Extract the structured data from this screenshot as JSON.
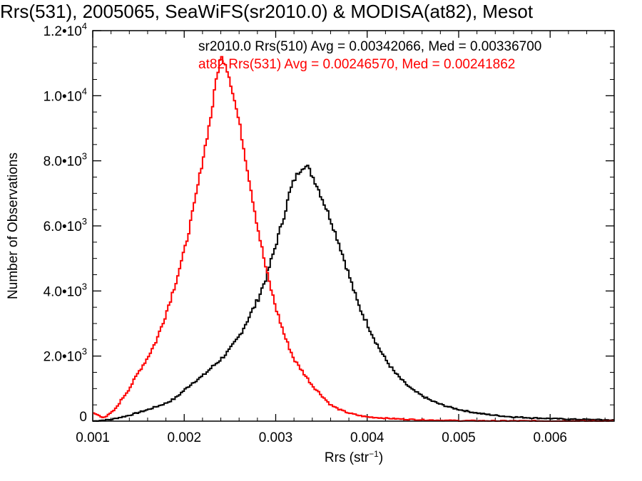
{
  "chart_data": {
    "type": "histogram-step",
    "title": "Rrs(531), 2005065, SeaWiFS(sr2010.0) & MODISA(at82), Mesot",
    "xlabel": "Rrs (str",
    "xlabel_sup": "−1",
    "xlabel_close": ")",
    "ylabel": "Number of Observations",
    "xlim": [
      0.001,
      0.0067
    ],
    "ylim": [
      0,
      12000
    ],
    "x_ticks": [
      {
        "value": 0.001,
        "label": "0.001"
      },
      {
        "value": 0.002,
        "label": "0.002"
      },
      {
        "value": 0.003,
        "label": "0.003"
      },
      {
        "value": 0.004,
        "label": "0.004"
      },
      {
        "value": 0.005,
        "label": "0.005"
      },
      {
        "value": 0.006,
        "label": "0.006"
      }
    ],
    "y_ticks": [
      {
        "value": 0,
        "mant": "0",
        "exp": ""
      },
      {
        "value": 2000,
        "mant": "2.0•10",
        "exp": "3"
      },
      {
        "value": 4000,
        "mant": "4.0•10",
        "exp": "3"
      },
      {
        "value": 6000,
        "mant": "6.0•10",
        "exp": "3"
      },
      {
        "value": 8000,
        "mant": "8.0•10",
        "exp": "3"
      },
      {
        "value": 10000,
        "mant": "1.0•10",
        "exp": "4"
      },
      {
        "value": 12000,
        "mant": "1.2•10",
        "exp": "4"
      }
    ],
    "legend": [
      {
        "text": "sr2010.0 Rrs(510) Avg = 0.00342066, Med = 0.00336700",
        "color": "#000000"
      },
      {
        "text": "at82 Rrs(531) Avg = 0.00246570, Med = 0.00241862",
        "color": "#ff0000"
      }
    ],
    "series": [
      {
        "color": "#000000",
        "points": [
          [
            0.001,
            0
          ],
          [
            0.0012,
            50
          ],
          [
            0.0014,
            180
          ],
          [
            0.0016,
            350
          ],
          [
            0.0018,
            550
          ],
          [
            0.0019,
            700
          ],
          [
            0.002,
            950
          ],
          [
            0.0021,
            1200
          ],
          [
            0.0022,
            1380
          ],
          [
            0.0023,
            1650
          ],
          [
            0.0024,
            1900
          ],
          [
            0.0025,
            2200
          ],
          [
            0.0026,
            2600
          ],
          [
            0.0027,
            3150
          ],
          [
            0.0028,
            3700
          ],
          [
            0.0029,
            4450
          ],
          [
            0.003,
            5400
          ],
          [
            0.0031,
            6400
          ],
          [
            0.00315,
            7000
          ],
          [
            0.0032,
            7400
          ],
          [
            0.00325,
            7650
          ],
          [
            0.0033,
            7850
          ],
          [
            0.00335,
            7800
          ],
          [
            0.0034,
            7550
          ],
          [
            0.00345,
            7250
          ],
          [
            0.0035,
            6900
          ],
          [
            0.0036,
            6200
          ],
          [
            0.0037,
            5400
          ],
          [
            0.0038,
            4500
          ],
          [
            0.0039,
            3600
          ],
          [
            0.004,
            3000
          ],
          [
            0.0041,
            2400
          ],
          [
            0.0042,
            1900
          ],
          [
            0.0043,
            1500
          ],
          [
            0.0044,
            1200
          ],
          [
            0.0045,
            950
          ],
          [
            0.0046,
            780
          ],
          [
            0.0047,
            630
          ],
          [
            0.0048,
            520
          ],
          [
            0.0049,
            430
          ],
          [
            0.005,
            360
          ],
          [
            0.0051,
            300
          ],
          [
            0.0052,
            250
          ],
          [
            0.0053,
            210
          ],
          [
            0.0054,
            180
          ],
          [
            0.0055,
            150
          ],
          [
            0.0056,
            130
          ],
          [
            0.0058,
            100
          ],
          [
            0.006,
            80
          ],
          [
            0.0062,
            60
          ],
          [
            0.0064,
            50
          ],
          [
            0.0066,
            40
          ],
          [
            0.0067,
            30
          ]
        ]
      },
      {
        "color": "#ff0000",
        "points": [
          [
            0.001,
            250
          ],
          [
            0.00105,
            200
          ],
          [
            0.0011,
            120
          ],
          [
            0.00115,
            150
          ],
          [
            0.0012,
            250
          ],
          [
            0.00125,
            380
          ],
          [
            0.0013,
            600
          ],
          [
            0.0014,
            1000
          ],
          [
            0.0015,
            1500
          ],
          [
            0.0016,
            1950
          ],
          [
            0.0017,
            2500
          ],
          [
            0.0018,
            3300
          ],
          [
            0.0019,
            4200
          ],
          [
            0.002,
            5200
          ],
          [
            0.0021,
            6500
          ],
          [
            0.0022,
            8000
          ],
          [
            0.0023,
            9500
          ],
          [
            0.00235,
            10500
          ],
          [
            0.0024,
            11200
          ],
          [
            0.00245,
            11000
          ],
          [
            0.0025,
            10500
          ],
          [
            0.0026,
            9200
          ],
          [
            0.0027,
            7600
          ],
          [
            0.0028,
            6000
          ],
          [
            0.0029,
            4600
          ],
          [
            0.003,
            3500
          ],
          [
            0.0031,
            2600
          ],
          [
            0.0032,
            1900
          ],
          [
            0.0033,
            1500
          ],
          [
            0.0034,
            1100
          ],
          [
            0.0035,
            800
          ],
          [
            0.0036,
            500
          ],
          [
            0.0037,
            350
          ],
          [
            0.0038,
            250
          ],
          [
            0.0039,
            180
          ],
          [
            0.004,
            130
          ],
          [
            0.0042,
            90
          ],
          [
            0.0044,
            60
          ],
          [
            0.0046,
            40
          ],
          [
            0.0048,
            25
          ],
          [
            0.005,
            15
          ],
          [
            0.0055,
            8
          ],
          [
            0.006,
            5
          ],
          [
            0.0067,
            3
          ]
        ]
      }
    ]
  }
}
